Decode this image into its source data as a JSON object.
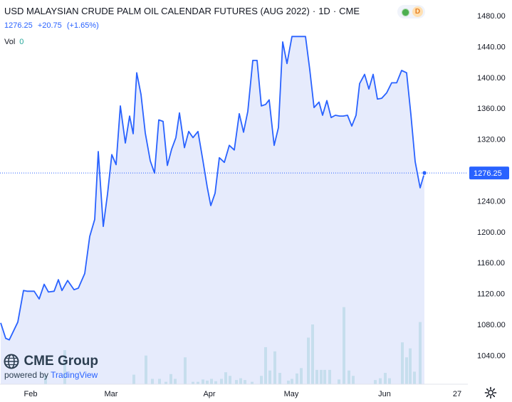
{
  "header": {
    "title": "USD MALAYSIAN CRUDE PALM OIL CALENDAR FUTURES (AUG 2022)",
    "interval": "1D",
    "exchange": "CME",
    "market_status_letter": "D",
    "last": "1276.25",
    "change": "+20.75",
    "change_pct": "(+1.65%)",
    "volume_label": "Vol",
    "volume_value": "0"
  },
  "branding": {
    "logo_text": "CME Group",
    "powered_by": "powered by",
    "powered_by_brand": "TradingView"
  },
  "colors": {
    "line": "#2962ff",
    "fill": "#dde4fb",
    "volume": "#80cbc4",
    "axis_text": "#131722",
    "price_label_bg": "#2962ff"
  },
  "chart_data": {
    "type": "area",
    "y_axis": {
      "position": "right",
      "ticks": [
        1040,
        1080,
        1120,
        1160,
        1200,
        1240,
        1280,
        1320,
        1360,
        1400,
        1440,
        1480
      ],
      "tick_labels": [
        "1040.00",
        "1080.00",
        "1120.00",
        "1160.00",
        "1200.00",
        "1240.00",
        "1280.00",
        "1320.00",
        "1360.00",
        "1400.00",
        "1440.00",
        "1480.00"
      ]
    },
    "x_axis": {
      "tick_labels": [
        "Feb",
        "Mar",
        "Apr",
        "May",
        "Jun",
        "27"
      ]
    },
    "last_price": 1276.25,
    "last_price_label": "1276.25",
    "price_series": [
      [
        1,
        1082
      ],
      [
        8,
        1062
      ],
      [
        13,
        1060
      ],
      [
        25,
        1083
      ],
      [
        33,
        1124
      ],
      [
        38,
        1123
      ],
      [
        48,
        1123
      ],
      [
        55,
        1113
      ],
      [
        62,
        1132
      ],
      [
        68,
        1122
      ],
      [
        76,
        1123
      ],
      [
        82,
        1138
      ],
      [
        87,
        1124
      ],
      [
        95,
        1137
      ],
      [
        104,
        1125
      ],
      [
        110,
        1127
      ],
      [
        119,
        1146
      ],
      [
        126,
        1194
      ],
      [
        133,
        1216
      ],
      [
        138,
        1304
      ],
      [
        145,
        1207
      ],
      [
        151,
        1249
      ],
      [
        157,
        1300
      ],
      [
        163,
        1287
      ],
      [
        169,
        1363
      ],
      [
        176,
        1315
      ],
      [
        182,
        1350
      ],
      [
        187,
        1327
      ],
      [
        192,
        1406
      ],
      [
        198,
        1378
      ],
      [
        204,
        1328
      ],
      [
        211,
        1292
      ],
      [
        217,
        1276
      ],
      [
        223,
        1345
      ],
      [
        229,
        1343
      ],
      [
        235,
        1286
      ],
      [
        241,
        1307
      ],
      [
        247,
        1322
      ],
      [
        252,
        1354
      ],
      [
        259,
        1309
      ],
      [
        265,
        1330
      ],
      [
        271,
        1322
      ],
      [
        278,
        1330
      ],
      [
        285,
        1292
      ],
      [
        291,
        1258
      ],
      [
        296,
        1234
      ],
      [
        302,
        1250
      ],
      [
        308,
        1296
      ],
      [
        315,
        1290
      ],
      [
        322,
        1312
      ],
      [
        329,
        1306
      ],
      [
        336,
        1353
      ],
      [
        342,
        1329
      ],
      [
        348,
        1356
      ],
      [
        355,
        1422
      ],
      [
        361,
        1422
      ],
      [
        367,
        1363
      ],
      [
        373,
        1365
      ],
      [
        378,
        1371
      ],
      [
        385,
        1312
      ],
      [
        391,
        1335
      ],
      [
        397,
        1446
      ],
      [
        403,
        1418
      ],
      [
        410,
        1453
      ],
      [
        417,
        1453
      ],
      [
        423,
        1453
      ],
      [
        429,
        1453
      ],
      [
        435,
        1410
      ],
      [
        441,
        1361
      ],
      [
        448,
        1368
      ],
      [
        453,
        1351
      ],
      [
        459,
        1370
      ],
      [
        465,
        1348
      ],
      [
        471,
        1351
      ],
      [
        477,
        1350
      ],
      [
        482,
        1350
      ],
      [
        488,
        1351
      ],
      [
        494,
        1337
      ],
      [
        500,
        1351
      ],
      [
        505,
        1392
      ],
      [
        512,
        1404
      ],
      [
        518,
        1385
      ],
      [
        524,
        1404
      ],
      [
        530,
        1372
      ],
      [
        536,
        1373
      ],
      [
        543,
        1380
      ],
      [
        550,
        1393
      ],
      [
        557,
        1393
      ],
      [
        564,
        1409
      ],
      [
        571,
        1406
      ],
      [
        577,
        1352
      ],
      [
        583,
        1291
      ],
      [
        590,
        1257
      ],
      [
        596,
        1276
      ]
    ],
    "volume_series": [
      [
        64,
        0.15
      ],
      [
        91,
        0.57
      ],
      [
        188,
        0.16
      ],
      [
        205,
        0.48
      ],
      [
        214,
        0.09
      ],
      [
        224,
        0.09
      ],
      [
        233,
        0.04
      ],
      [
        240,
        0.17
      ],
      [
        246,
        0.09
      ],
      [
        260,
        0.45
      ],
      [
        271,
        0.04
      ],
      [
        278,
        0.04
      ],
      [
        285,
        0.08
      ],
      [
        291,
        0.06
      ],
      [
        297,
        0.09
      ],
      [
        303,
        0.05
      ],
      [
        311,
        0.09
      ],
      [
        317,
        0.2
      ],
      [
        323,
        0.14
      ],
      [
        332,
        0.07
      ],
      [
        338,
        0.1
      ],
      [
        344,
        0.07
      ],
      [
        354,
        0.04
      ],
      [
        367,
        0.14
      ],
      [
        373,
        0.62
      ],
      [
        379,
        0.23
      ],
      [
        386,
        0.55
      ],
      [
        393,
        0.19
      ],
      [
        405,
        0.06
      ],
      [
        410,
        0.09
      ],
      [
        417,
        0.18
      ],
      [
        423,
        0.27
      ],
      [
        433,
        0.78
      ],
      [
        439,
        1.0
      ],
      [
        445,
        0.24
      ],
      [
        451,
        0.24
      ],
      [
        456,
        0.24
      ],
      [
        463,
        0.24
      ],
      [
        476,
        0.08
      ],
      [
        483,
        1.29
      ],
      [
        490,
        0.23
      ],
      [
        496,
        0.14
      ],
      [
        527,
        0.07
      ],
      [
        534,
        0.1
      ],
      [
        541,
        0.19
      ],
      [
        547,
        0.1
      ],
      [
        565,
        0.7
      ],
      [
        571,
        0.45
      ],
      [
        576,
        0.6
      ],
      [
        582,
        0.21
      ],
      [
        590,
        1.04
      ]
    ]
  }
}
